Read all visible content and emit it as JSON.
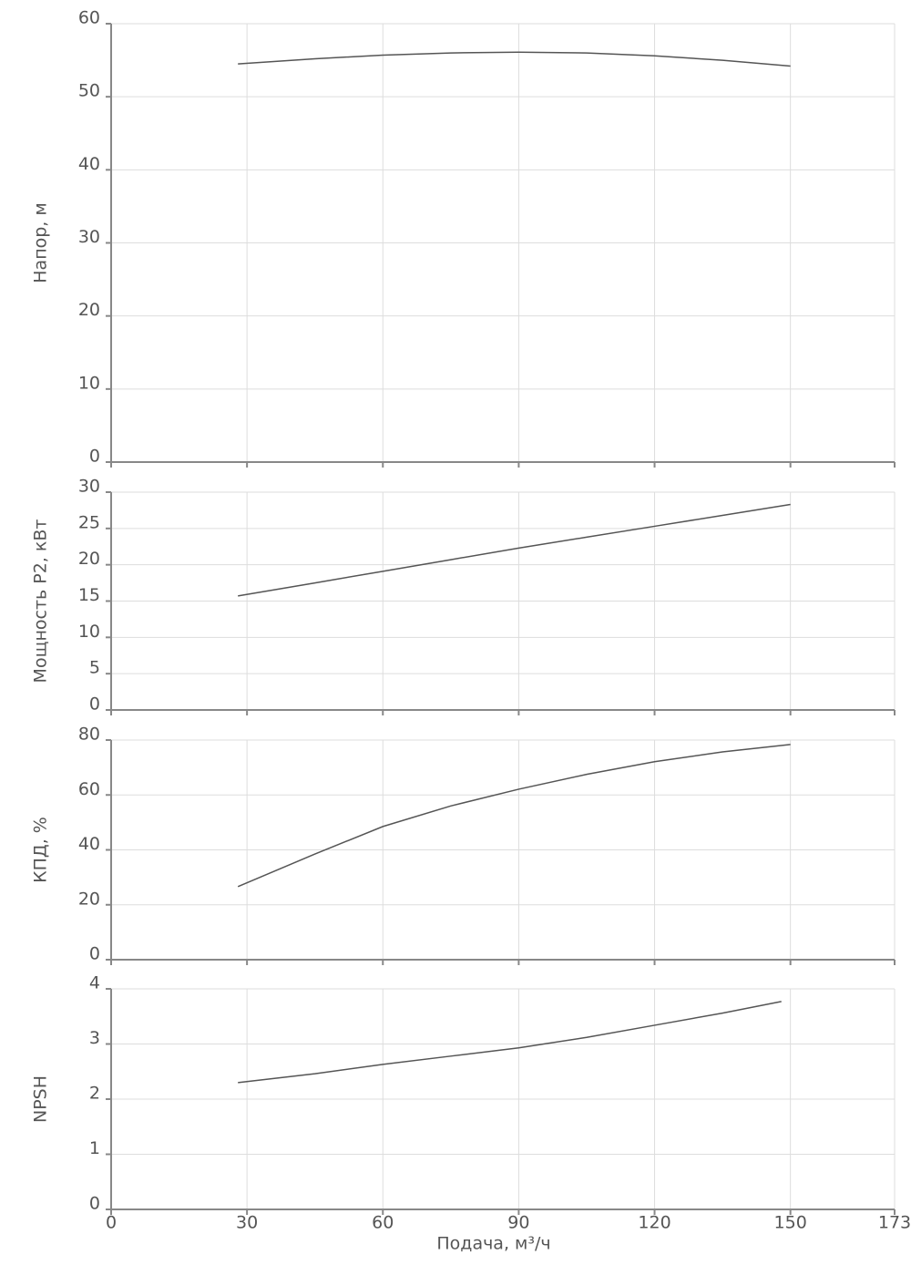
{
  "chart_data": [
    {
      "type": "line",
      "ylabel": "Напор, м",
      "xlim": [
        0,
        173
      ],
      "xticks": [
        0,
        30,
        60,
        90,
        120,
        150,
        173
      ],
      "ylim": [
        0,
        60
      ],
      "yticks": [
        0,
        10,
        20,
        30,
        40,
        50,
        60
      ],
      "grid": true,
      "x": [
        28,
        45,
        60,
        75,
        90,
        105,
        120,
        135,
        150
      ],
      "series": [
        {
          "color": "#555555",
          "values": [
            54.5,
            55.2,
            55.7,
            56.0,
            56.1,
            56.0,
            55.6,
            55.0,
            54.2
          ]
        }
      ]
    },
    {
      "type": "line",
      "ylabel": "Мощность P2, кВт",
      "xlim": [
        0,
        173
      ],
      "xticks": [
        0,
        30,
        60,
        90,
        120,
        150,
        173
      ],
      "ylim": [
        0,
        30
      ],
      "yticks": [
        0,
        5,
        10,
        15,
        20,
        25,
        30
      ],
      "grid": true,
      "x": [
        28,
        45,
        60,
        75,
        90,
        105,
        120,
        135,
        150
      ],
      "series": [
        {
          "color": "#555555",
          "values": [
            15.7,
            17.5,
            19.1,
            20.7,
            22.3,
            23.8,
            25.3,
            26.8,
            28.3
          ]
        }
      ]
    },
    {
      "type": "line",
      "ylabel": "КПД, %",
      "xlim": [
        0,
        173
      ],
      "xticks": [
        0,
        30,
        60,
        90,
        120,
        150,
        173
      ],
      "ylim": [
        0,
        80
      ],
      "yticks": [
        0,
        20,
        40,
        60,
        80
      ],
      "grid": true,
      "x": [
        28,
        45,
        60,
        75,
        90,
        105,
        120,
        135,
        150
      ],
      "series": [
        {
          "color": "#555555",
          "values": [
            26.6,
            38.5,
            48.5,
            56.0,
            62.1,
            67.5,
            72.1,
            75.7,
            78.4
          ]
        }
      ]
    },
    {
      "type": "line",
      "ylabel": "NPSH",
      "xlabel": "Подача, м³/ч",
      "xlim": [
        0,
        173
      ],
      "xticks": [
        0,
        30,
        60,
        90,
        120,
        150,
        173
      ],
      "ylim": [
        0,
        4
      ],
      "yticks": [
        0,
        1,
        2,
        3,
        4
      ],
      "grid": true,
      "x": [
        28,
        45,
        60,
        75,
        90,
        105,
        120,
        135,
        148
      ],
      "series": [
        {
          "color": "#555555",
          "values": [
            2.3,
            2.46,
            2.63,
            2.78,
            2.93,
            3.12,
            3.34,
            3.56,
            3.77
          ]
        }
      ]
    }
  ]
}
